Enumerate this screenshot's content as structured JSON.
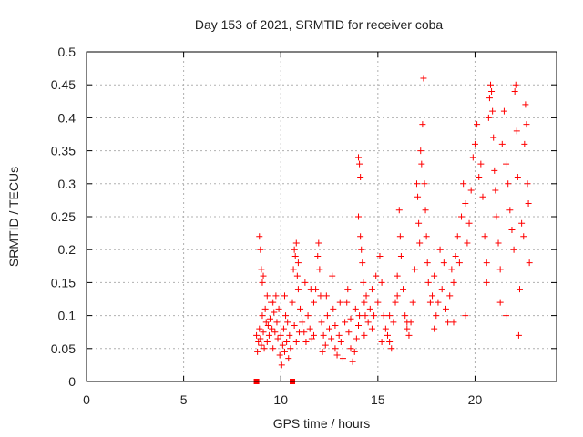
{
  "chart_data": {
    "type": "scatter",
    "title": "Day 153 of 2021, SRMTID for receiver coba",
    "xlabel": "GPS time / hours",
    "ylabel": "SRMTID / TECUs",
    "xlim": [
      0,
      24.2
    ],
    "ylim": [
      0,
      0.5
    ],
    "xticks": [
      0,
      5,
      10,
      15,
      20
    ],
    "xtick_labels": [
      "0",
      "5",
      "10",
      "15",
      "20"
    ],
    "yticks": [
      0,
      0.05,
      0.1,
      0.15,
      0.2,
      0.25,
      0.3,
      0.35,
      0.4,
      0.45,
      0.5
    ],
    "ytick_labels": [
      "0",
      "0.05",
      "0.1",
      "0.15",
      "0.2",
      "0.25",
      "0.3",
      "0.35",
      "0.4",
      "0.45",
      "0.5"
    ],
    "grid": true,
    "marker": "plus",
    "color": "#ff0000",
    "square_markers": [
      {
        "x": 8.75,
        "y": 0
      },
      {
        "x": 10.6,
        "y": 0
      }
    ],
    "series": [
      {
        "name": "SRMTID",
        "points": [
          [
            8.75,
            0.07
          ],
          [
            8.8,
            0.045
          ],
          [
            8.85,
            0.06
          ],
          [
            8.9,
            0.08
          ],
          [
            8.95,
            0.065
          ],
          [
            9.0,
            0.055
          ],
          [
            9.05,
            0.1
          ],
          [
            9.1,
            0.075
          ],
          [
            9.15,
            0.05
          ],
          [
            9.2,
            0.11
          ],
          [
            9.25,
            0.09
          ],
          [
            9.3,
            0.06
          ],
          [
            9.35,
            0.085
          ],
          [
            9.4,
            0.07
          ],
          [
            9.45,
            0.095
          ],
          [
            9.5,
            0.12
          ],
          [
            9.55,
            0.08
          ],
          [
            9.6,
            0.05
          ],
          [
            9.65,
            0.105
          ],
          [
            9.7,
            0.075
          ],
          [
            9.75,
            0.13
          ],
          [
            9.8,
            0.09
          ],
          [
            9.85,
            0.065
          ],
          [
            9.9,
            0.11
          ],
          [
            9.95,
            0.04
          ],
          [
            10.0,
            0.07
          ],
          [
            10.05,
            0.025
          ],
          [
            10.1,
            0.055
          ],
          [
            10.15,
            0.08
          ],
          [
            10.2,
            0.045
          ],
          [
            10.25,
            0.1
          ],
          [
            10.3,
            0.06
          ],
          [
            10.35,
            0.09
          ],
          [
            10.4,
            0.035
          ],
          [
            10.45,
            0.07
          ],
          [
            10.5,
            0.05
          ],
          [
            10.6,
            0.12
          ],
          [
            10.7,
            0.085
          ],
          [
            10.8,
            0.06
          ],
          [
            10.9,
            0.14
          ],
          [
            8.9,
            0.22
          ],
          [
            8.95,
            0.2
          ],
          [
            9.0,
            0.17
          ],
          [
            9.05,
            0.15
          ],
          [
            9.1,
            0.16
          ],
          [
            9.3,
            0.13
          ],
          [
            9.6,
            0.12
          ],
          [
            10.2,
            0.13
          ],
          [
            10.65,
            0.17
          ],
          [
            10.7,
            0.2
          ],
          [
            10.75,
            0.19
          ],
          [
            10.8,
            0.21
          ],
          [
            10.85,
            0.16
          ],
          [
            10.9,
            0.18
          ],
          [
            11.0,
            0.11
          ],
          [
            11.1,
            0.09
          ],
          [
            11.2,
            0.075
          ],
          [
            11.3,
            0.06
          ],
          [
            11.4,
            0.1
          ],
          [
            11.5,
            0.08
          ],
          [
            11.6,
            0.065
          ],
          [
            11.7,
            0.12
          ],
          [
            11.8,
            0.14
          ],
          [
            11.9,
            0.19
          ],
          [
            11.95,
            0.21
          ],
          [
            12.0,
            0.17
          ],
          [
            12.05,
            0.13
          ],
          [
            12.1,
            0.09
          ],
          [
            12.2,
            0.07
          ],
          [
            12.3,
            0.055
          ],
          [
            12.4,
            0.1
          ],
          [
            12.5,
            0.08
          ],
          [
            12.6,
            0.065
          ],
          [
            12.7,
            0.11
          ],
          [
            12.8,
            0.05
          ],
          [
            12.9,
            0.04
          ],
          [
            13.0,
            0.07
          ],
          [
            13.1,
            0.06
          ],
          [
            13.2,
            0.035
          ],
          [
            13.3,
            0.09
          ],
          [
            13.4,
            0.12
          ],
          [
            13.5,
            0.075
          ],
          [
            13.6,
            0.05
          ],
          [
            13.7,
            0.03
          ],
          [
            13.8,
            0.045
          ],
          [
            13.9,
            0.065
          ],
          [
            14.0,
            0.085
          ],
          [
            14.05,
            0.1
          ],
          [
            11.25,
            0.15
          ],
          [
            11.55,
            0.14
          ],
          [
            12.35,
            0.13
          ],
          [
            12.65,
            0.16
          ],
          [
            13.05,
            0.12
          ],
          [
            13.45,
            0.14
          ],
          [
            13.85,
            0.11
          ],
          [
            12.15,
            0.045
          ],
          [
            14.0,
            0.34
          ],
          [
            14.05,
            0.33
          ],
          [
            14.1,
            0.31
          ],
          [
            14.0,
            0.25
          ],
          [
            14.1,
            0.22
          ],
          [
            14.15,
            0.2
          ],
          [
            14.2,
            0.18
          ],
          [
            14.25,
            0.15
          ],
          [
            14.3,
            0.12
          ],
          [
            14.35,
            0.1
          ],
          [
            14.4,
            0.13
          ],
          [
            14.5,
            0.09
          ],
          [
            14.6,
            0.11
          ],
          [
            14.7,
            0.14
          ],
          [
            14.8,
            0.1
          ],
          [
            14.9,
            0.16
          ],
          [
            15.0,
            0.12
          ],
          [
            15.1,
            0.19
          ],
          [
            15.2,
            0.15
          ],
          [
            15.3,
            0.1
          ],
          [
            15.4,
            0.08
          ],
          [
            15.5,
            0.07
          ],
          [
            15.6,
            0.06
          ],
          [
            15.7,
            0.05
          ],
          [
            15.8,
            0.09
          ],
          [
            15.9,
            0.12
          ],
          [
            16.0,
            0.16
          ],
          [
            16.1,
            0.26
          ],
          [
            16.15,
            0.22
          ],
          [
            16.2,
            0.19
          ],
          [
            16.3,
            0.14
          ],
          [
            16.4,
            0.1
          ],
          [
            16.5,
            0.08
          ],
          [
            16.6,
            0.07
          ],
          [
            16.7,
            0.09
          ],
          [
            16.8,
            0.12
          ],
          [
            16.9,
            0.17
          ],
          [
            17.0,
            0.3
          ],
          [
            17.05,
            0.28
          ],
          [
            17.1,
            0.24
          ],
          [
            17.15,
            0.21
          ],
          [
            17.2,
            0.35
          ],
          [
            17.25,
            0.33
          ],
          [
            17.3,
            0.39
          ],
          [
            17.35,
            0.46
          ],
          [
            17.4,
            0.3
          ],
          [
            17.45,
            0.26
          ],
          [
            17.5,
            0.22
          ],
          [
            17.55,
            0.18
          ],
          [
            17.6,
            0.15
          ],
          [
            17.7,
            0.12
          ],
          [
            17.8,
            0.13
          ],
          [
            17.9,
            0.16
          ],
          [
            18.0,
            0.1
          ],
          [
            18.1,
            0.12
          ],
          [
            18.2,
            0.2
          ],
          [
            18.3,
            0.14
          ],
          [
            18.4,
            0.18
          ],
          [
            18.5,
            0.11
          ],
          [
            18.6,
            0.09
          ],
          [
            18.7,
            0.13
          ],
          [
            18.8,
            0.17
          ],
          [
            18.9,
            0.15
          ],
          [
            19.0,
            0.19
          ],
          [
            19.1,
            0.22
          ],
          [
            19.2,
            0.18
          ],
          [
            19.3,
            0.25
          ],
          [
            19.4,
            0.3
          ],
          [
            19.5,
            0.27
          ],
          [
            19.6,
            0.21
          ],
          [
            19.7,
            0.24
          ],
          [
            19.8,
            0.29
          ],
          [
            19.9,
            0.34
          ],
          [
            20.0,
            0.36
          ],
          [
            20.1,
            0.39
          ],
          [
            20.2,
            0.31
          ],
          [
            20.3,
            0.33
          ],
          [
            20.4,
            0.28
          ],
          [
            20.5,
            0.22
          ],
          [
            20.6,
            0.18
          ],
          [
            20.7,
            0.4
          ],
          [
            20.75,
            0.43
          ],
          [
            20.8,
            0.45
          ],
          [
            20.85,
            0.44
          ],
          [
            20.9,
            0.41
          ],
          [
            20.95,
            0.37
          ],
          [
            21.0,
            0.32
          ],
          [
            21.05,
            0.29
          ],
          [
            21.1,
            0.25
          ],
          [
            21.2,
            0.21
          ],
          [
            21.3,
            0.17
          ],
          [
            21.4,
            0.36
          ],
          [
            21.5,
            0.41
          ],
          [
            21.6,
            0.33
          ],
          [
            21.7,
            0.3
          ],
          [
            21.8,
            0.26
          ],
          [
            21.9,
            0.23
          ],
          [
            22.0,
            0.2
          ],
          [
            22.05,
            0.44
          ],
          [
            22.1,
            0.45
          ],
          [
            22.15,
            0.38
          ],
          [
            22.2,
            0.31
          ],
          [
            22.25,
            0.07
          ],
          [
            22.3,
            0.14
          ],
          [
            22.4,
            0.24
          ],
          [
            22.5,
            0.22
          ],
          [
            22.55,
            0.36
          ],
          [
            22.6,
            0.42
          ],
          [
            22.65,
            0.39
          ],
          [
            22.7,
            0.3
          ],
          [
            22.75,
            0.27
          ],
          [
            22.8,
            0.18
          ],
          [
            21.6,
            0.1
          ],
          [
            21.3,
            0.12
          ],
          [
            20.6,
            0.15
          ],
          [
            19.5,
            0.1
          ],
          [
            18.9,
            0.09
          ],
          [
            17.9,
            0.08
          ],
          [
            16.5,
            0.09
          ],
          [
            15.2,
            0.06
          ],
          [
            14.7,
            0.08
          ],
          [
            14.3,
            0.07
          ],
          [
            13.6,
            0.095
          ],
          [
            12.8,
            0.085
          ],
          [
            11.7,
            0.07
          ],
          [
            10.95,
            0.075
          ],
          [
            15.6,
            0.1
          ],
          [
            16.0,
            0.13
          ]
        ]
      }
    ]
  }
}
